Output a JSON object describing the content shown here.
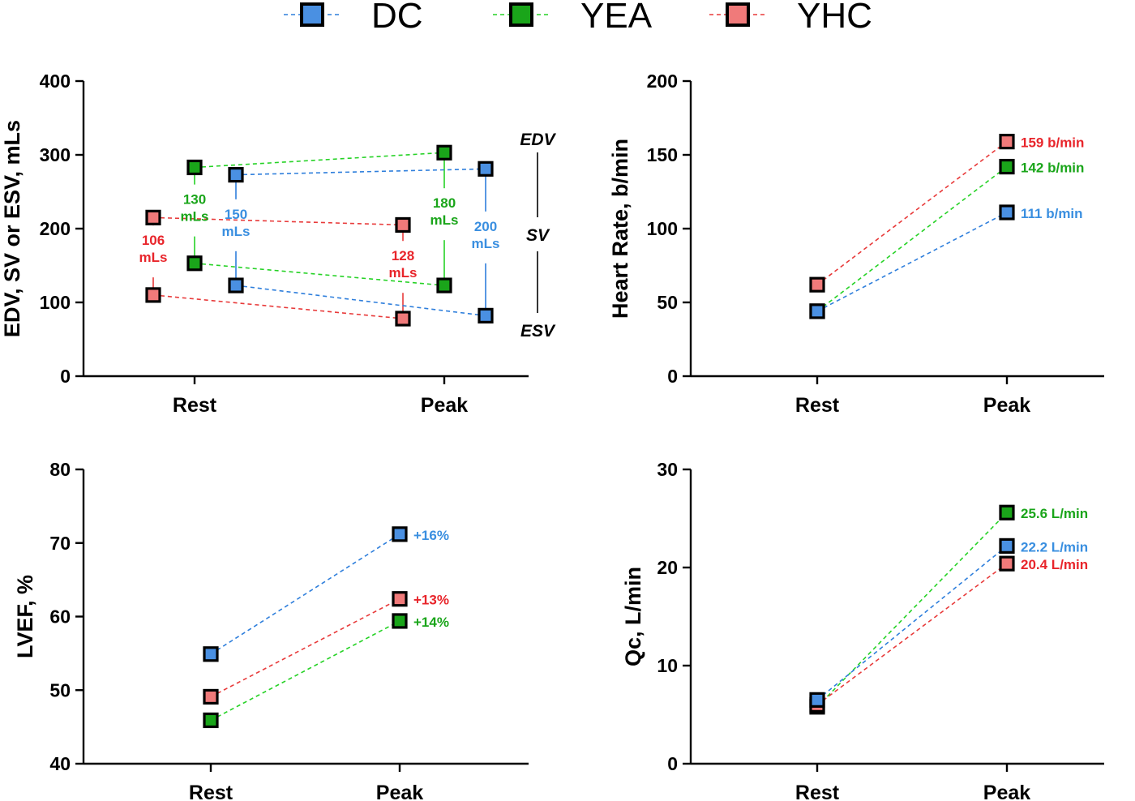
{
  "colors": {
    "DC": "#4a90e2",
    "YEA": "#1aa51a",
    "YHC": "#f07a7a",
    "DC_text": "#3a8fe0",
    "YEA_text": "#1aa51a",
    "YHC_text": "#e8252b",
    "DC_line": "#2f7fdc",
    "YEA_line": "#26d226",
    "YHC_line": "#e83a3a"
  },
  "legend": [
    {
      "key": "DC",
      "label": "DC"
    },
    {
      "key": "YEA",
      "label": "YEA"
    },
    {
      "key": "YHC",
      "label": "YHC"
    }
  ],
  "chart_data": [
    {
      "type": "scatter",
      "ylabel": "EDV, SV or ESV, mLs",
      "categories": [
        "Rest",
        "Peak"
      ],
      "ylim": [
        0,
        400
      ],
      "yticks": [
        0,
        100,
        200,
        300,
        400
      ],
      "side_labels": [
        "EDV",
        "SV",
        "ESV"
      ],
      "series": [
        {
          "name": "YHC",
          "EDV": [
            215,
            205
          ],
          "ESV": [
            110,
            78
          ],
          "sv_labels": [
            [
              "106",
              "mLs"
            ],
            [
              "128",
              "mLs"
            ]
          ]
        },
        {
          "name": "YEA",
          "EDV": [
            283,
            303
          ],
          "ESV": [
            153,
            123
          ],
          "sv_labels": [
            [
              "130",
              "mLs"
            ],
            [
              "180",
              "mLs"
            ]
          ]
        },
        {
          "name": "DC",
          "EDV": [
            273,
            281
          ],
          "ESV": [
            123,
            82
          ],
          "sv_labels": [
            [
              "150",
              "mLs"
            ],
            [
              "200",
              "mLs"
            ]
          ]
        }
      ]
    },
    {
      "type": "line",
      "ylabel": "Heart Rate, b/min",
      "categories": [
        "Rest",
        "Peak"
      ],
      "ylim": [
        0,
        200
      ],
      "yticks": [
        0,
        50,
        100,
        150,
        200
      ],
      "series": [
        {
          "name": "YHC",
          "values": [
            62,
            159
          ],
          "label": "159 b/min"
        },
        {
          "name": "YEA",
          "values": [
            44,
            142
          ],
          "label": "142 b/min"
        },
        {
          "name": "DC",
          "values": [
            44,
            111
          ],
          "label": "111 b/min"
        }
      ]
    },
    {
      "type": "line",
      "ylabel": "LVEF, %",
      "categories": [
        "Rest",
        "Peak"
      ],
      "ylim": [
        40,
        80
      ],
      "yticks": [
        40,
        50,
        60,
        70,
        80
      ],
      "series": [
        {
          "name": "DC",
          "values": [
            54.9,
            71.2
          ],
          "label": "+16%"
        },
        {
          "name": "YHC",
          "values": [
            49.1,
            62.4
          ],
          "label": "+13%"
        },
        {
          "name": "YEA",
          "values": [
            45.9,
            59.4
          ],
          "label": "+14%"
        }
      ]
    },
    {
      "type": "line",
      "ylabel": "Qc, L/min",
      "categories": [
        "Rest",
        "Peak"
      ],
      "ylim": [
        0,
        30
      ],
      "yticks": [
        0,
        10,
        20,
        30
      ],
      "series": [
        {
          "name": "YEA",
          "values": [
            5.8,
            25.6
          ],
          "label": "25.6 L/min"
        },
        {
          "name": "YHC",
          "values": [
            6.0,
            20.4
          ],
          "label": "20.4 L/min"
        },
        {
          "name": "DC",
          "values": [
            6.5,
            22.2
          ],
          "label": "22.2 L/min"
        }
      ]
    }
  ]
}
